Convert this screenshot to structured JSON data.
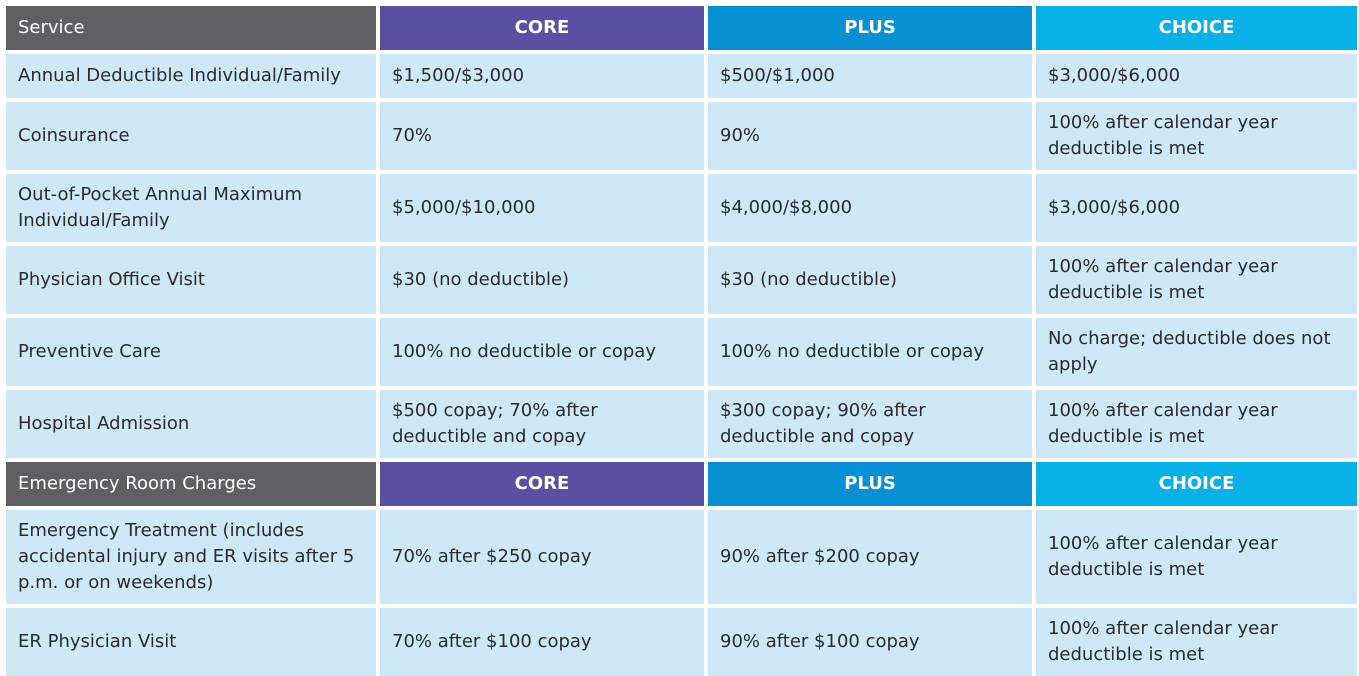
{
  "header1": {
    "service": "Service",
    "core": "CORE",
    "plus": "PLUS",
    "choice": "CHOICE"
  },
  "rows1": [
    {
      "service": "Annual Deductible Individual/Family",
      "core": "$1,500/$3,000",
      "plus": "$500/$1,000",
      "choice": "$3,000/$6,000"
    },
    {
      "service": "Coinsurance",
      "core": "70%",
      "plus": "90%",
      "choice": "100% after calendar year deductible is met"
    },
    {
      "service": "Out-of-Pocket Annual Maximum Individual/Family",
      "core": "$5,000/$10,000",
      "plus": "$4,000/$8,000",
      "choice": "$3,000/$6,000"
    },
    {
      "service": "Physician Office Visit",
      "core": "$30 (no deductible)",
      "plus": "$30 (no deductible)",
      "choice": "100% after calendar year deductible is met"
    },
    {
      "service": "Preventive Care",
      "core": "100% no deductible or copay",
      "plus": "100% no deductible or copay",
      "choice": "No charge; deductible does not apply"
    },
    {
      "service": "Hospital Admission",
      "core": "$500 copay; 70% after deductible and copay",
      "plus": "$300 copay; 90% after deductible and copay",
      "choice": "100% after calendar year deductible is met"
    }
  ],
  "header2": {
    "service": "Emergency Room Charges",
    "core": "CORE",
    "plus": "PLUS",
    "choice": "CHOICE"
  },
  "rows2": [
    {
      "service": "Emergency Treatment (includes accidental injury and ER visits after 5 p.m. or on weekends)",
      "core": "70% after $250 copay",
      "plus": "90% after $200 copay",
      "choice": "100% after calendar year deductible is met"
    },
    {
      "service": "ER Physician Visit",
      "core": "70% after $100 copay",
      "plus": "90% after $100 copay",
      "choice": "100% after calendar year deductible is met"
    }
  ],
  "colors": {
    "service_header": "#5f5f62",
    "core": "#5a50a1",
    "plus": "#0890d4",
    "choice": "#08b0e8",
    "cell": "#cfe8f7"
  }
}
